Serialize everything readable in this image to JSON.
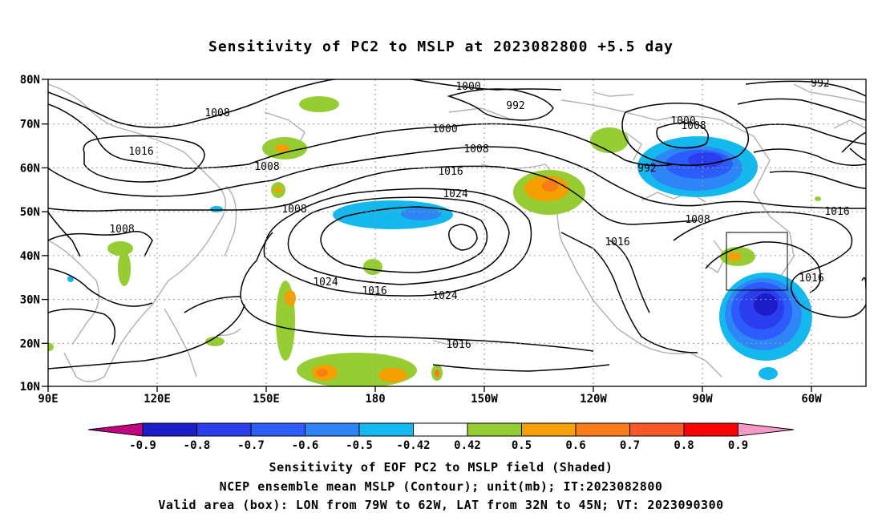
{
  "title": "Sensitivity of PC2 to MSLP at 2023082800 +5.5 day",
  "lat_labels": [
    "80N",
    "70N",
    "60N",
    "50N",
    "40N",
    "30N",
    "20N",
    "10N"
  ],
  "lon_labels": [
    "90E",
    "120E",
    "150E",
    "180",
    "150W",
    "120W",
    "90W",
    "60W"
  ],
  "contour_labels": [
    "1000",
    "992",
    "992",
    "1008",
    "1000",
    "1016",
    "1008",
    "1000",
    "1008",
    "1008",
    "1016",
    "1024",
    "992",
    "1008",
    "1008",
    "1016",
    "1008",
    "1016",
    "1024",
    "1016",
    "1024",
    "1016",
    "1016"
  ],
  "colorbar": {
    "labels": [
      "-0.9",
      "-0.8",
      "-0.7",
      "-0.6",
      "-0.5",
      "-0.42",
      "0.42",
      "0.5",
      "0.6",
      "0.7",
      "0.8",
      "0.9"
    ],
    "colors": [
      "#1c1cc8",
      "#2a3ef0",
      "#2c5cfc",
      "#2e86f6",
      "#12b8ee",
      "#ffffff",
      "#96cd32",
      "#f5a000",
      "#f87c18",
      "#fb5a28",
      "#ff0000"
    ],
    "left_tip": "#c00080",
    "right_tip": "#f59ac8"
  },
  "captions": [
    "Sensitivity of EOF PC2 to MSLP field (Shaded)",
    "NCEP ensemble mean MSLP (Contour); unit(mb); IT:2023082800",
    "Valid area (box): LON from 79W to 62W, LAT from 32N to 45N; VT: 2023090300"
  ]
}
